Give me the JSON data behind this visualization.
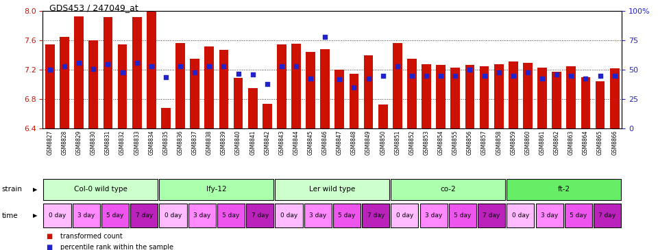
{
  "title": "GDS453 / 247049_at",
  "samples": [
    "GSM8827",
    "GSM8828",
    "GSM8829",
    "GSM8830",
    "GSM8831",
    "GSM8832",
    "GSM8833",
    "GSM8834",
    "GSM8835",
    "GSM8836",
    "GSM8837",
    "GSM8838",
    "GSM8839",
    "GSM8840",
    "GSM8841",
    "GSM8842",
    "GSM8843",
    "GSM8844",
    "GSM8845",
    "GSM8846",
    "GSM8847",
    "GSM8848",
    "GSM8849",
    "GSM8850",
    "GSM8851",
    "GSM8852",
    "GSM8853",
    "GSM8854",
    "GSM8855",
    "GSM8856",
    "GSM8857",
    "GSM8858",
    "GSM8859",
    "GSM8860",
    "GSM8861",
    "GSM8862",
    "GSM8863",
    "GSM8864",
    "GSM8865",
    "GSM8866"
  ],
  "bar_values": [
    7.55,
    7.65,
    7.93,
    7.6,
    7.92,
    7.55,
    7.92,
    8.0,
    6.68,
    7.57,
    7.35,
    7.52,
    7.47,
    7.09,
    6.95,
    6.74,
    7.55,
    7.56,
    7.45,
    7.48,
    7.2,
    7.15,
    7.4,
    6.73,
    7.57,
    7.35,
    7.28,
    7.27,
    7.23,
    7.27,
    7.25,
    7.28,
    7.32,
    7.3,
    7.23,
    7.18,
    7.25,
    7.1,
    7.05,
    7.22
  ],
  "percentile_pct": [
    50,
    53,
    56,
    51,
    55,
    48,
    56,
    53,
    44,
    53,
    48,
    53,
    53,
    47,
    46,
    38,
    53,
    53,
    43,
    78,
    42,
    35,
    43,
    45,
    53,
    45,
    45,
    45,
    45,
    50,
    45,
    48,
    45,
    48,
    43,
    46,
    45,
    43,
    45,
    45
  ],
  "ylim": [
    6.4,
    8.0
  ],
  "y2lim": [
    0,
    100
  ],
  "yticks": [
    6.4,
    6.8,
    7.2,
    7.6,
    8.0
  ],
  "y2ticks": [
    0,
    25,
    50,
    75,
    100
  ],
  "bar_color": "#cc1100",
  "dot_color": "#2222cc",
  "grid_color": "#333333",
  "strains": [
    {
      "label": "Col-0 wild type",
      "start": 0,
      "end": 8,
      "color": "#ccffcc"
    },
    {
      "label": "lfy-12",
      "start": 8,
      "end": 16,
      "color": "#aaffaa"
    },
    {
      "label": "Ler wild type",
      "start": 16,
      "end": 24,
      "color": "#ccffcc"
    },
    {
      "label": "co-2",
      "start": 24,
      "end": 32,
      "color": "#aaffaa"
    },
    {
      "label": "ft-2",
      "start": 32,
      "end": 40,
      "color": "#66ee66"
    }
  ],
  "time_labels": [
    "0 day",
    "3 day",
    "5 day",
    "7 day",
    "0 day",
    "3 day",
    "5 day",
    "7 day",
    "0 day",
    "3 day",
    "5 day",
    "7 day",
    "0 day",
    "3 day",
    "5 day",
    "7 day",
    "0 day",
    "3 day",
    "5 day",
    "7 day"
  ],
  "time_colors": [
    "#ffbbff",
    "#ff88ff",
    "#ee55ee",
    "#bb22bb",
    "#ffbbff",
    "#ff88ff",
    "#ee55ee",
    "#bb22bb",
    "#ffbbff",
    "#ff88ff",
    "#ee55ee",
    "#bb22bb",
    "#ffbbff",
    "#ff88ff",
    "#ee55ee",
    "#bb22bb",
    "#ffbbff",
    "#ff88ff",
    "#ee55ee",
    "#bb22bb"
  ]
}
